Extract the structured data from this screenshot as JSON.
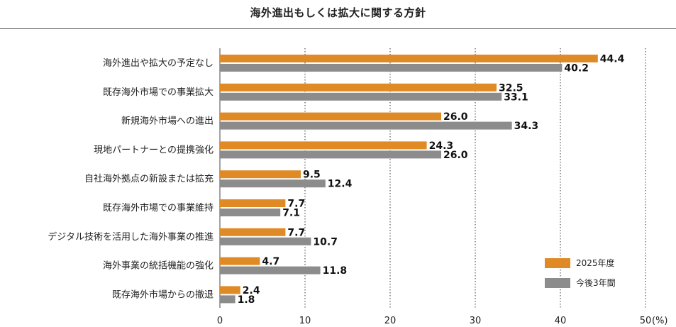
{
  "page": {
    "title": "海外進出もしくは拡大に関する方針"
  },
  "colors": {
    "series_2025": "#E08A26",
    "series_future": "#8C8C8C",
    "axis": "#444444",
    "grid": "#333333"
  },
  "chart_data": {
    "type": "bar",
    "orientation": "horizontal",
    "title": "海外進出もしくは拡大に関する方針",
    "categories": [
      "海外進出や拡大の予定なし",
      "既存海外市場での事業拡大",
      "新規海外市場への進出",
      "現地パートナーとの提携強化",
      "自社海外拠点の新設または拡充",
      "既存海外市場での事業維持",
      "デジタル技術を活用した海外事業の推進",
      "海外事業の統括機能の強化",
      "既存海外市場からの撤退"
    ],
    "series": [
      {
        "name": "2025年度",
        "values": [
          44.4,
          32.5,
          26.0,
          24.3,
          9.5,
          7.7,
          7.7,
          4.7,
          2.4
        ],
        "labels": [
          "44.4",
          "32.5",
          "26.0",
          "24.3",
          "9.5",
          "7.7",
          "7.7",
          "4.7",
          "2.4"
        ]
      },
      {
        "name": "今後3年間",
        "values": [
          40.2,
          33.1,
          34.3,
          26.0,
          12.4,
          7.1,
          10.7,
          11.8,
          1.8
        ],
        "labels": [
          "40.2",
          "33.1",
          "34.3",
          "26.0",
          "12.4",
          "7.1",
          "10.7",
          "11.8",
          "1.8"
        ]
      }
    ],
    "xlim": [
      0,
      50
    ],
    "x_ticks": [
      0,
      10,
      20,
      30,
      40,
      50
    ],
    "x_tick_labels": [
      "0",
      "10",
      "20",
      "30",
      "40",
      "50"
    ],
    "x_unit": "(%)",
    "grid": "vertical-dotted",
    "legend_position": "bottom-right"
  }
}
